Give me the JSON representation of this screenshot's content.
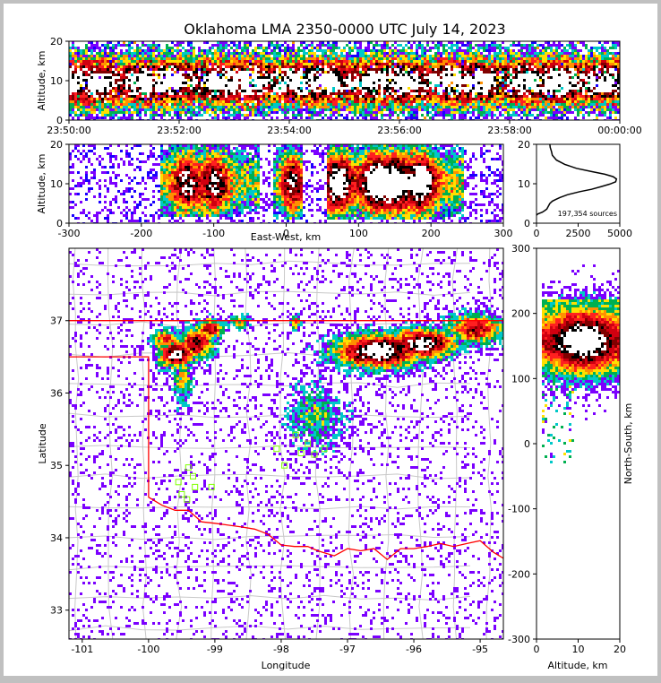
{
  "title": "Oklahoma LMA 2350-0000 UTC July 14, 2023",
  "palette": [
    "#1a00ff",
    "#7b00ff",
    "#00c8c8",
    "#00b050",
    "#ffe000",
    "#ff9000",
    "#ff2020",
    "#d00010",
    "#800000",
    "#000000",
    "#ffffff"
  ],
  "colors": {
    "state_border": "#ff0000",
    "county_lines": "#c8c8c8",
    "station_marker": "#7fff00",
    "profile_line": "#000000"
  },
  "chart_data": [
    {
      "id": "time_height",
      "type": "heatmap",
      "xlabel": "",
      "ylabel": "Altitude, km",
      "x_ticks": [
        "23:50:00",
        "23:52:00",
        "23:54:00",
        "23:56:00",
        "23:58:00",
        "00:00:00"
      ],
      "xlim_minutes": [
        0,
        10
      ],
      "ylim": [
        0,
        20
      ],
      "y_ticks": [
        0,
        10,
        20
      ],
      "density_peak_altitude_km": 10,
      "grid": false
    },
    {
      "id": "ew_height",
      "type": "heatmap",
      "xlabel": "East-West, km",
      "ylabel": "Altitude, km",
      "xlim": [
        -300,
        300
      ],
      "x_ticks": [
        -300,
        -200,
        -100,
        0,
        100,
        200,
        300
      ],
      "ylim": [
        0,
        20
      ],
      "y_ticks": [
        0,
        10,
        20
      ],
      "clusters": [
        {
          "x_range": [
            -175,
            -40
          ],
          "alt_range": [
            2,
            20
          ],
          "peak_x": [
            -140,
            -100
          ],
          "intensity": 0.75
        },
        {
          "x_range": [
            -20,
            20
          ],
          "alt_range": [
            1,
            20
          ],
          "peak_x": [
            5,
            10
          ],
          "intensity": 0.45
        },
        {
          "x_range": [
            55,
            245
          ],
          "alt_range": [
            1,
            20
          ],
          "peak_x": [
            70,
            120,
            150,
            185
          ],
          "intensity": 0.9
        }
      ]
    },
    {
      "id": "altitude_histogram",
      "type": "line",
      "xlabel": "",
      "ylabel": "",
      "xlim": [
        0,
        5000
      ],
      "x_ticks": [
        0,
        2500,
        5000
      ],
      "ylim": [
        0,
        20
      ],
      "y_ticks": [
        0,
        10,
        20
      ],
      "annotation": "197,354 sources",
      "series": [
        {
          "x": [
            0,
            30,
            120,
            350,
            500,
            620,
            700,
            800,
            950,
            1150,
            1400,
            1850,
            2600,
            3300,
            3900,
            4400,
            4750,
            4800,
            4600,
            4100,
            3300,
            2400,
            1700,
            1200,
            950,
            900,
            820,
            800
          ],
          "y": [
            2.0,
            2.2,
            2.4,
            2.8,
            3.2,
            3.6,
            4.2,
            5.0,
            5.6,
            6.0,
            6.5,
            7.2,
            8.0,
            8.6,
            9.3,
            9.9,
            10.5,
            11.2,
            11.8,
            12.4,
            13.1,
            13.9,
            14.9,
            16.0,
            17.2,
            18.2,
            19.2,
            20.0
          ]
        }
      ]
    },
    {
      "id": "plan_view",
      "type": "scatter",
      "xlabel": "Longitude",
      "ylabel": "Latitude",
      "xlim": [
        -101.2,
        -94.65
      ],
      "ylim": [
        32.6,
        38.0
      ],
      "x_ticks": [
        -101,
        -100,
        -99,
        -98,
        -97,
        -96,
        -95
      ],
      "y_ticks": [
        33,
        34,
        35,
        36,
        37
      ],
      "clusters": [
        {
          "lon": -99.6,
          "lat": 36.55,
          "slon": 0.18,
          "slat": 0.12,
          "intensity": 0.95
        },
        {
          "lon": -99.3,
          "lat": 36.7,
          "slon": 0.18,
          "slat": 0.14,
          "intensity": 0.8
        },
        {
          "lon": -99.1,
          "lat": 36.9,
          "slon": 0.14,
          "slat": 0.1,
          "intensity": 0.7
        },
        {
          "lon": -98.65,
          "lat": 37.0,
          "slon": 0.12,
          "slat": 0.06,
          "intensity": 0.4
        },
        {
          "lon": -99.75,
          "lat": 36.75,
          "slon": 0.15,
          "slat": 0.1,
          "intensity": 0.6
        },
        {
          "lon": -99.5,
          "lat": 36.2,
          "slon": 0.1,
          "slat": 0.22,
          "intensity": 0.4
        },
        {
          "lon": -97.8,
          "lat": 37.0,
          "slon": 0.05,
          "slat": 0.06,
          "intensity": 0.6
        },
        {
          "lon": -96.55,
          "lat": 36.6,
          "slon": 0.45,
          "slat": 0.16,
          "intensity": 1.0
        },
        {
          "lon": -95.9,
          "lat": 36.7,
          "slon": 0.35,
          "slat": 0.14,
          "intensity": 0.95
        },
        {
          "lon": -95.1,
          "lat": 36.9,
          "slon": 0.3,
          "slat": 0.14,
          "intensity": 0.7
        },
        {
          "lon": -96.85,
          "lat": 36.5,
          "slon": 0.1,
          "slat": 0.08,
          "intensity": 0.75
        },
        {
          "lon": -97.5,
          "lat": 35.7,
          "slon": 0.3,
          "slat": 0.3,
          "intensity": 0.3
        }
      ],
      "stations": [
        {
          "lon": -99.4,
          "lat": 34.97
        },
        {
          "lon": -99.33,
          "lat": 34.85
        },
        {
          "lon": -99.55,
          "lat": 34.77
        },
        {
          "lon": -99.3,
          "lat": 34.7
        },
        {
          "lon": -99.05,
          "lat": 34.7
        },
        {
          "lon": -99.5,
          "lat": 34.6
        },
        {
          "lon": -99.42,
          "lat": 34.53
        },
        {
          "lon": -98.07,
          "lat": 35.23
        },
        {
          "lon": -97.78,
          "lat": 35.42
        },
        {
          "lon": -97.95,
          "lat": 35.0
        },
        {
          "lon": -97.7,
          "lat": 35.17
        },
        {
          "lon": -97.5,
          "lat": 35.15
        },
        {
          "lon": -97.35,
          "lat": 35.23
        },
        {
          "lon": -97.6,
          "lat": 35.3
        }
      ]
    },
    {
      "id": "ns_height",
      "type": "heatmap",
      "xlabel": "Altitude, km",
      "ylabel": "North-South, km",
      "xlim": [
        0,
        20
      ],
      "x_ticks": [
        0,
        10,
        20
      ],
      "ylim": [
        -300,
        300
      ],
      "y_ticks": [
        -300,
        -200,
        -100,
        0,
        100,
        200,
        300
      ],
      "clusters": [
        {
          "ns_center": 160,
          "ns_spread": 35,
          "alt_range": [
            1,
            20
          ],
          "intensity": 1.0
        }
      ]
    }
  ]
}
